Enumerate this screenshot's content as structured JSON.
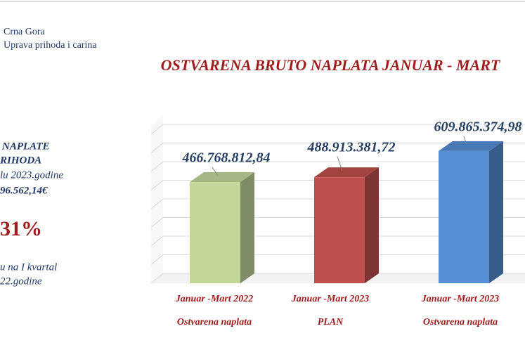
{
  "header": {
    "country": "Crna Gora",
    "agency": "Uprava prihoda i carina"
  },
  "sidebar": {
    "line1": "NAPLATE",
    "line2": "RIHODA",
    "line3": "lu 2023.godine",
    "amount": "96.562,14€",
    "percent": "31%",
    "line4": "u na I kvartal",
    "line5": "22.godine"
  },
  "chart_data": {
    "type": "bar3d",
    "title": "OSTVARENA BRUTO NAPLATA  JANUAR - MART",
    "categories": [
      "Januar -Mart 2022",
      "Januar -Mart 2023",
      "Januar -Mart 2023"
    ],
    "category_notes": [
      "Ostvarena naplata",
      "PLAN",
      "Ostvarena naplata"
    ],
    "values": [
      466768812.84,
      488913381.72,
      609865374.98
    ],
    "value_labels": [
      "466.768.812,84",
      "488.913.381,72",
      "609.865.374,98"
    ],
    "colors": [
      "#c4d79b",
      "#c0504d",
      "#558ed5"
    ],
    "ylim": [
      0,
      700000000
    ],
    "grid": true
  }
}
